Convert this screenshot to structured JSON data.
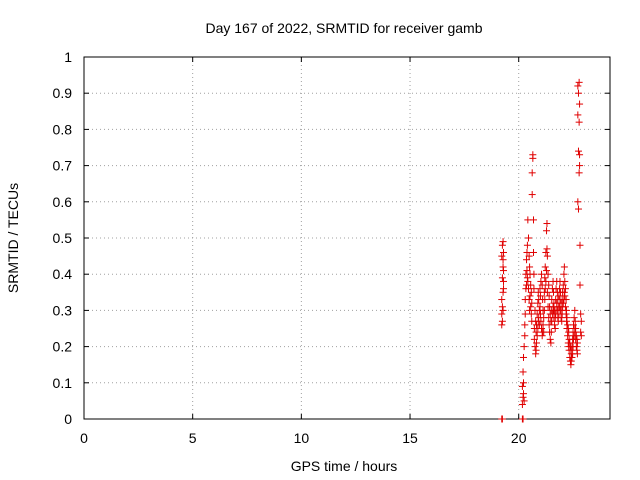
{
  "chart_data": {
    "type": "scatter",
    "title": "Day 167 of 2022, SRMTID for receiver gamb",
    "xlabel": "GPS time / hours",
    "ylabel": "SRMTID / TECUs",
    "xlim": [
      0,
      24.2
    ],
    "ylim": [
      0,
      1
    ],
    "x_ticks": [
      0,
      5,
      10,
      15,
      20
    ],
    "x_tick_labels": [
      "0",
      "5",
      "10",
      "15",
      "20"
    ],
    "y_ticks": [
      0,
      0.1,
      0.2,
      0.3,
      0.4,
      0.5,
      0.6,
      0.7,
      0.8,
      0.9,
      1
    ],
    "y_tick_labels": [
      "0",
      "0.1",
      "0.2",
      "0.3",
      "0.4",
      "0.5",
      "0.6",
      "0.7",
      "0.8",
      "0.9",
      "1"
    ],
    "grid": true,
    "marker": "plus",
    "color": "#e00000",
    "series": [
      {
        "name": "gamb",
        "x": [
          19.22,
          19.22,
          19.22,
          19.22,
          19.22,
          19.25,
          19.25,
          19.25,
          19.25,
          19.25,
          19.28,
          19.28,
          19.28,
          19.28,
          19.28,
          19.3,
          19.3,
          19.3,
          19.3,
          20.17,
          20.17,
          20.17,
          20.2,
          20.2,
          20.2,
          20.22,
          20.22,
          20.22,
          20.25,
          20.25,
          20.28,
          20.28,
          20.3,
          20.3,
          20.33,
          20.33,
          20.36,
          20.36,
          20.38,
          20.38,
          20.4,
          20.4,
          20.42,
          20.42,
          20.45,
          20.45,
          20.48,
          20.48,
          20.5,
          20.5,
          20.52,
          20.52,
          20.55,
          20.55,
          20.58,
          20.58,
          20.6,
          20.6,
          20.62,
          20.62,
          20.65,
          20.65,
          20.68,
          20.68,
          20.7,
          20.7,
          20.72,
          20.72,
          20.75,
          20.75,
          20.78,
          20.78,
          20.8,
          20.8,
          20.82,
          20.82,
          20.85,
          20.85,
          20.88,
          20.88,
          20.9,
          20.9,
          20.92,
          20.92,
          20.95,
          20.95,
          20.98,
          20.98,
          21.0,
          21.0,
          21.02,
          21.02,
          21.05,
          21.05,
          21.08,
          21.08,
          21.1,
          21.1,
          21.12,
          21.12,
          21.15,
          21.15,
          21.18,
          21.18,
          21.2,
          21.2,
          21.22,
          21.22,
          21.25,
          21.25,
          21.28,
          21.28,
          21.3,
          21.3,
          21.32,
          21.32,
          21.35,
          21.35,
          21.38,
          21.38,
          21.4,
          21.4,
          21.42,
          21.42,
          21.45,
          21.45,
          21.48,
          21.48,
          21.5,
          21.5,
          21.52,
          21.52,
          21.55,
          21.55,
          21.58,
          21.58,
          21.6,
          21.6,
          21.62,
          21.62,
          21.65,
          21.65,
          21.68,
          21.68,
          21.7,
          21.7,
          21.72,
          21.72,
          21.75,
          21.75,
          21.78,
          21.78,
          21.8,
          21.8,
          21.82,
          21.82,
          21.85,
          21.85,
          21.88,
          21.88,
          21.9,
          21.9,
          21.92,
          21.92,
          21.95,
          21.95,
          21.98,
          21.98,
          22.0,
          22.0,
          22.02,
          22.02,
          22.05,
          22.05,
          22.08,
          22.08,
          22.1,
          22.1,
          22.12,
          22.12,
          22.15,
          22.15,
          22.18,
          22.18,
          22.2,
          22.2,
          22.22,
          22.22,
          22.25,
          22.25,
          22.28,
          22.28,
          22.3,
          22.3,
          22.32,
          22.32,
          22.35,
          22.35,
          22.38,
          22.38,
          22.4,
          22.4,
          22.42,
          22.42,
          22.45,
          22.45,
          22.48,
          22.48,
          22.5,
          22.5,
          22.52,
          22.52,
          22.55,
          22.55,
          22.58,
          22.58,
          22.6,
          22.6,
          22.62,
          22.62,
          22.65,
          22.65,
          22.68,
          22.68,
          22.7,
          22.7,
          22.72,
          22.72,
          22.72,
          22.75,
          22.75,
          22.75,
          22.78,
          22.78,
          22.78,
          22.8,
          22.8,
          22.8,
          22.82,
          22.82,
          22.85,
          22.85,
          22.88,
          22.88
        ],
        "y": [
          0.0,
          0.26,
          0.29,
          0.33,
          0.45,
          0.0,
          0.27,
          0.31,
          0.39,
          0.48,
          0.3,
          0.35,
          0.42,
          0.44,
          0.49,
          0.38,
          0.46,
          0.41,
          0.36,
          0.0,
          0.04,
          0.09,
          0.0,
          0.06,
          0.13,
          0.07,
          0.1,
          0.17,
          0.05,
          0.2,
          0.23,
          0.26,
          0.29,
          0.33,
          0.36,
          0.4,
          0.37,
          0.44,
          0.41,
          0.46,
          0.39,
          0.48,
          0.38,
          0.55,
          0.36,
          0.5,
          0.33,
          0.45,
          0.3,
          0.42,
          0.34,
          0.4,
          0.31,
          0.37,
          0.29,
          0.35,
          0.27,
          0.32,
          0.62,
          0.68,
          0.72,
          0.73,
          0.55,
          0.46,
          0.4,
          0.36,
          0.25,
          0.22,
          0.3,
          0.2,
          0.27,
          0.18,
          0.24,
          0.19,
          0.26,
          0.21,
          0.29,
          0.23,
          0.32,
          0.25,
          0.35,
          0.27,
          0.33,
          0.28,
          0.3,
          0.26,
          0.36,
          0.31,
          0.34,
          0.29,
          0.38,
          0.27,
          0.4,
          0.25,
          0.37,
          0.23,
          0.33,
          0.24,
          0.3,
          0.26,
          0.28,
          0.24,
          0.35,
          0.3,
          0.39,
          0.33,
          0.42,
          0.36,
          0.46,
          0.38,
          0.52,
          0.41,
          0.54,
          0.47,
          0.45,
          0.35,
          0.4,
          0.31,
          0.37,
          0.28,
          0.34,
          0.26,
          0.31,
          0.24,
          0.29,
          0.22,
          0.27,
          0.21,
          0.3,
          0.24,
          0.33,
          0.27,
          0.36,
          0.29,
          0.38,
          0.31,
          0.35,
          0.3,
          0.32,
          0.28,
          0.3,
          0.26,
          0.28,
          0.25,
          0.33,
          0.29,
          0.36,
          0.3,
          0.38,
          0.32,
          0.35,
          0.3,
          0.33,
          0.28,
          0.31,
          0.27,
          0.34,
          0.29,
          0.36,
          0.31,
          0.38,
          0.33,
          0.35,
          0.3,
          0.32,
          0.28,
          0.3,
          0.27,
          0.33,
          0.29,
          0.35,
          0.31,
          0.37,
          0.32,
          0.4,
          0.33,
          0.42,
          0.35,
          0.38,
          0.34,
          0.36,
          0.31,
          0.33,
          0.29,
          0.3,
          0.27,
          0.28,
          0.25,
          0.26,
          0.23,
          0.25,
          0.21,
          0.24,
          0.2,
          0.22,
          0.19,
          0.21,
          0.17,
          0.2,
          0.16,
          0.19,
          0.15,
          0.18,
          0.16,
          0.2,
          0.17,
          0.22,
          0.18,
          0.24,
          0.2,
          0.26,
          0.22,
          0.28,
          0.23,
          0.3,
          0.25,
          0.27,
          0.24,
          0.25,
          0.22,
          0.23,
          0.2,
          0.22,
          0.19,
          0.21,
          0.18,
          0.6,
          0.84,
          0.92,
          0.58,
          0.74,
          0.9,
          0.68,
          0.82,
          0.93,
          0.7,
          0.87,
          0.73,
          0.48,
          0.37,
          0.29,
          0.24,
          0.27,
          0.23
        ]
      }
    ]
  }
}
